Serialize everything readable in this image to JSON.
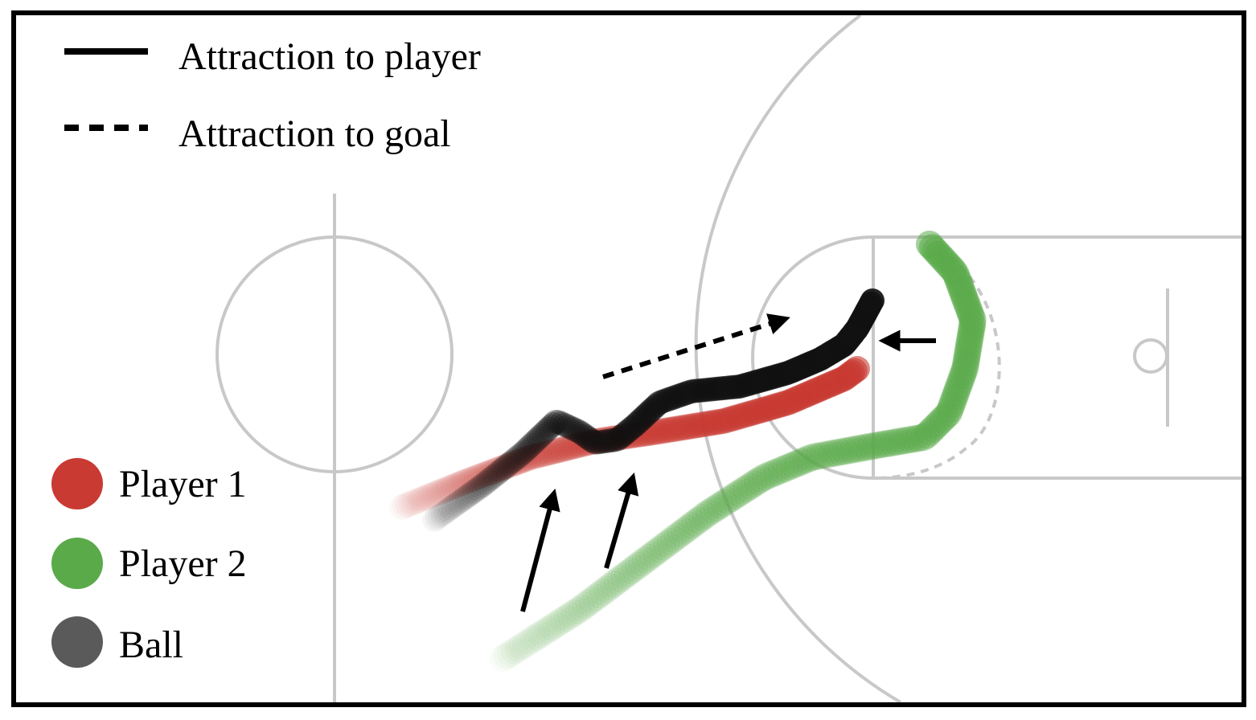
{
  "legend": {
    "lines": [
      {
        "label": "Attraction to player",
        "style": "solid"
      },
      {
        "label": "Attraction to goal",
        "style": "dashed"
      }
    ],
    "entities": [
      {
        "label": "Player 1",
        "color": "#c83a32"
      },
      {
        "label": "Player 2",
        "color": "#5aaa4a"
      },
      {
        "label": "Ball",
        "color": "#5a5a5a"
      }
    ]
  },
  "colors": {
    "court_line": "#c8c8c8",
    "player1": "#c83a32",
    "player2": "#5aaa4a",
    "ball": "#111111",
    "arrow": "#000000"
  }
}
